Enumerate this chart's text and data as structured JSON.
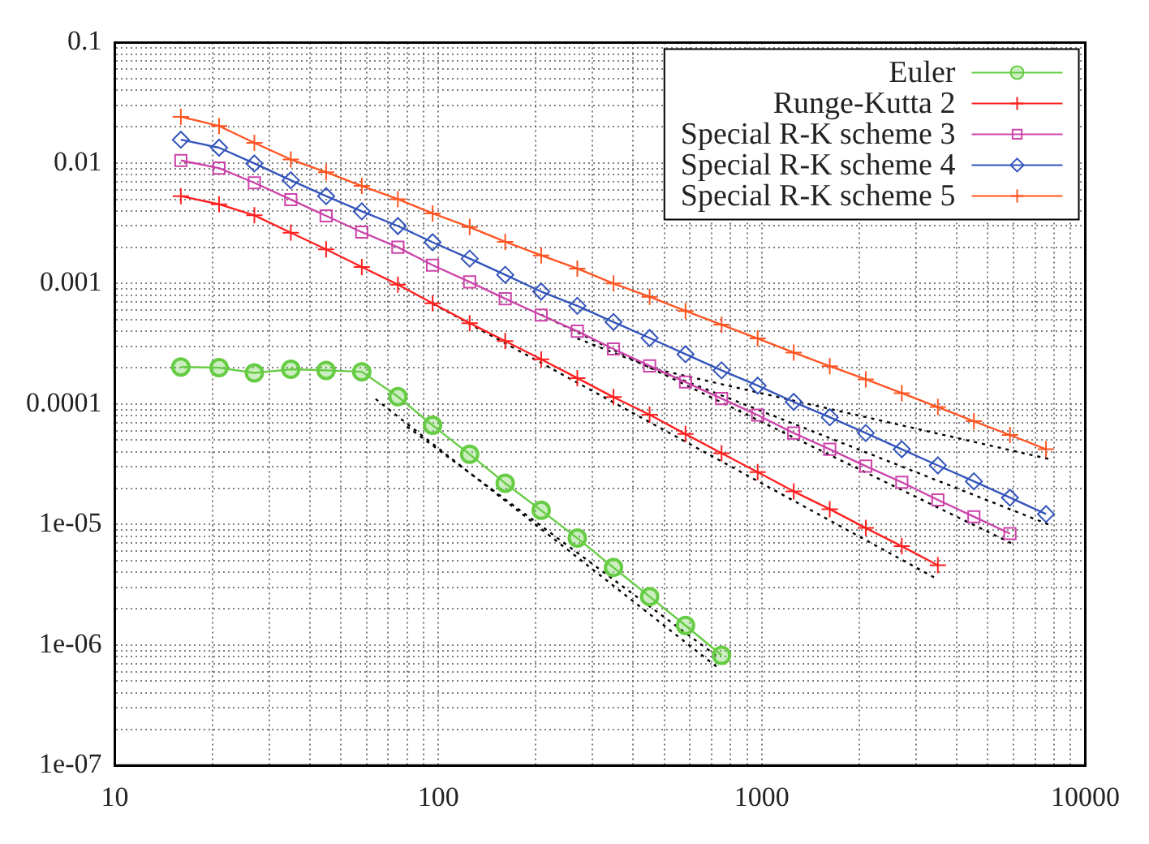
{
  "chart_data": {
    "type": "line",
    "log": "xy",
    "grid": true,
    "legend": "top right",
    "xlim": [
      10,
      10000
    ],
    "ylim": [
      1e-07,
      0.1
    ],
    "xticks": [
      10,
      {
        "value": 20,
        "label": null
      },
      {
        "value": 30,
        "label": null
      },
      {
        "value": 40,
        "label": null
      },
      {
        "value": 50,
        "label": null
      },
      {
        "value": 60,
        "label": null
      },
      {
        "value": 70,
        "label": null
      },
      {
        "value": 80,
        "label": null
      },
      {
        "value": 90,
        "label": null
      },
      100,
      {
        "value": 200,
        "label": null
      },
      {
        "value": 300,
        "label": null
      },
      {
        "value": 400,
        "label": null
      },
      {
        "value": 500,
        "label": null
      },
      {
        "value": 600,
        "label": null
      },
      {
        "value": 700,
        "label": null
      },
      {
        "value": 800,
        "label": null
      },
      {
        "value": 900,
        "label": null
      },
      1000,
      {
        "value": 2000,
        "label": null
      },
      {
        "value": 3000,
        "label": null
      },
      {
        "value": 4000,
        "label": null
      },
      {
        "value": 5000,
        "label": null
      },
      {
        "value": 6000,
        "label": null
      },
      {
        "value": 7000,
        "label": null
      },
      {
        "value": 8000,
        "label": null
      },
      {
        "value": 9000,
        "label": null
      },
      10000
    ],
    "yticks": [
      {
        "value": 1e-07,
        "label": "1e-07"
      },
      {
        "value": 2e-07,
        "label": null
      },
      {
        "value": 3e-07,
        "label": null
      },
      {
        "value": 4e-07,
        "label": null
      },
      {
        "value": 5e-07,
        "label": null
      },
      {
        "value": 6e-07,
        "label": null
      },
      {
        "value": 7e-07,
        "label": null
      },
      {
        "value": 8e-07,
        "label": null
      },
      {
        "value": 9e-07,
        "label": null
      },
      {
        "value": 1e-06,
        "label": "1e-06"
      },
      {
        "value": 2e-06,
        "label": null
      },
      {
        "value": 3e-06,
        "label": null
      },
      {
        "value": 4e-06,
        "label": null
      },
      {
        "value": 5e-06,
        "label": null
      },
      {
        "value": 6e-06,
        "label": null
      },
      {
        "value": 7e-06,
        "label": null
      },
      {
        "value": 8e-06,
        "label": null
      },
      {
        "value": 9e-06,
        "label": null
      },
      {
        "value": 1e-05,
        "label": "1e-05"
      },
      {
        "value": 2e-05,
        "label": null
      },
      {
        "value": 3e-05,
        "label": null
      },
      {
        "value": 4e-05,
        "label": null
      },
      {
        "value": 5e-05,
        "label": null
      },
      {
        "value": 6e-05,
        "label": null
      },
      {
        "value": 7e-05,
        "label": null
      },
      {
        "value": 8e-05,
        "label": null
      },
      {
        "value": 9e-05,
        "label": null
      },
      0.0001,
      {
        "value": 0.0002,
        "label": null
      },
      {
        "value": 0.0003,
        "label": null
      },
      {
        "value": 0.0004,
        "label": null
      },
      {
        "value": 0.0005,
        "label": null
      },
      {
        "value": 0.0006,
        "label": null
      },
      {
        "value": 0.0007,
        "label": null
      },
      {
        "value": 0.0008,
        "label": null
      },
      {
        "value": 0.0009,
        "label": null
      },
      0.001,
      {
        "value": 0.002,
        "label": null
      },
      {
        "value": 0.003,
        "label": null
      },
      {
        "value": 0.004,
        "label": null
      },
      {
        "value": 0.005,
        "label": null
      },
      {
        "value": 0.006,
        "label": null
      },
      {
        "value": 0.007,
        "label": null
      },
      {
        "value": 0.008,
        "label": null
      },
      {
        "value": 0.009,
        "label": null
      },
      0.01,
      {
        "value": 0.02,
        "label": null
      },
      {
        "value": 0.03,
        "label": null
      },
      {
        "value": 0.04,
        "label": null
      },
      {
        "value": 0.05,
        "label": null
      },
      {
        "value": 0.06,
        "label": null
      },
      {
        "value": 0.07,
        "label": null
      },
      {
        "value": 0.08,
        "label": null
      },
      {
        "value": 0.09,
        "label": null
      },
      0.1
    ],
    "series": [
      {
        "name": "Euler",
        "color": "#66cc44",
        "marker": "circle",
        "x": [
          16,
          21,
          27,
          35,
          45,
          58,
          75,
          96,
          125,
          161,
          208,
          269,
          348,
          450,
          581,
          751
        ],
        "values": [
          0.000203,
          0.0002,
          0.000181,
          0.000194,
          0.00019,
          0.000185,
          0.000115,
          6.65e-05,
          3.82e-05,
          2.2e-05,
          1.31e-05,
          7.7e-06,
          4.39e-06,
          2.52e-06,
          1.45e-06,
          8.2e-07
        ]
      },
      {
        "name": "Runge-Kutta 2",
        "color": "#ff2020",
        "marker": "cross",
        "x": [
          16,
          21,
          27,
          35,
          45,
          58,
          75,
          96,
          125,
          161,
          208,
          269,
          348,
          450,
          581,
          751,
          971,
          1255,
          1622,
          2096,
          2709,
          3501
        ],
        "values": [
          0.00531,
          0.00455,
          0.00368,
          0.00264,
          0.00192,
          0.00137,
          0.00098,
          0.000685,
          0.000469,
          0.000333,
          0.000235,
          0.000164,
          0.000114,
          8.15e-05,
          5.63e-05,
          3.9e-05,
          2.72e-05,
          1.88e-05,
          1.34e-05,
          9.35e-06,
          6.6e-06,
          4.59e-06
        ]
      },
      {
        "name": "Special R-K scheme 3",
        "color": "#cc44aa",
        "marker": "square",
        "x": [
          16,
          21,
          27,
          35,
          45,
          58,
          75,
          96,
          125,
          161,
          208,
          269,
          348,
          450,
          581,
          751,
          971,
          1255,
          1622,
          2096,
          2709,
          3501,
          4525,
          5849
        ],
        "values": [
          0.0105,
          0.00908,
          0.00685,
          0.00497,
          0.00364,
          0.00267,
          0.002,
          0.00142,
          0.00103,
          0.000747,
          0.000547,
          0.000402,
          0.000286,
          0.000207,
          0.000152,
          0.000111,
          8.09e-05,
          5.74e-05,
          4.21e-05,
          3.05e-05,
          2.24e-05,
          1.6e-05,
          1.16e-05,
          8.4e-06
        ]
      },
      {
        "name": "Special R-K scheme 4",
        "color": "#3355bb",
        "marker": "diamond",
        "x": [
          16,
          21,
          27,
          35,
          45,
          58,
          75,
          96,
          125,
          161,
          208,
          269,
          348,
          450,
          581,
          751,
          971,
          1255,
          1622,
          2096,
          2709,
          3501,
          4525,
          5849,
          7560
        ],
        "values": [
          0.0156,
          0.0134,
          0.00991,
          0.00719,
          0.00531,
          0.00397,
          0.003,
          0.0022,
          0.00161,
          0.00118,
          0.000857,
          0.000652,
          0.000479,
          0.000353,
          0.000259,
          0.00019,
          0.000142,
          0.000104,
          7.76e-05,
          5.74e-05,
          4.21e-05,
          3.09e-05,
          2.28e-05,
          1.67e-05,
          1.22e-05
        ]
      },
      {
        "name": "Special R-K scheme 5",
        "color": "#ff5522",
        "marker": "cross",
        "x": [
          16,
          21,
          27,
          35,
          45,
          58,
          75,
          96,
          125,
          161,
          208,
          269,
          348,
          450,
          581,
          751,
          971,
          1255,
          1622,
          2096,
          2709,
          3501,
          4525,
          5849,
          7560
        ],
        "values": [
          0.0242,
          0.0203,
          0.0147,
          0.0107,
          0.00839,
          0.00646,
          0.00501,
          0.00382,
          0.00294,
          0.00222,
          0.00171,
          0.00133,
          0.001,
          0.000776,
          0.000592,
          0.000455,
          0.00035,
          0.000267,
          0.000206,
          0.00016,
          0.000123,
          9.44e-05,
          7.19e-05,
          5.53e-05,
          4.21e-05
        ]
      },
      {
        "type": "line",
        "color": "#000000",
        "marker": "none",
        "line_style": "dotted",
        "x": [
          64,
          730
        ],
        "values": [
          0.00011,
          6.5e-07
        ]
      },
      {
        "type": "line",
        "color": "#000000",
        "marker": "none",
        "line_style": "dotted",
        "x": [
          80,
          730
        ],
        "values": [
          6.5e-05,
          8e-07
        ]
      },
      {
        "type": "line",
        "color": "#000000",
        "marker": "none",
        "line_style": "dotted",
        "x": [
          96,
          3500
        ],
        "values": [
          0.00068,
          3.5e-06
        ]
      },
      {
        "type": "line",
        "color": "#000000",
        "marker": "none",
        "line_style": "dotted",
        "x": [
          208,
          5900
        ],
        "values": [
          0.00055,
          7e-06
        ]
      },
      {
        "type": "line",
        "color": "#000000",
        "marker": "none",
        "line_style": "dotted",
        "x": [
          269,
          7700
        ],
        "values": [
          0.00035,
          1e-05
        ]
      },
      {
        "type": "line",
        "color": "#000000",
        "marker": "none",
        "line_style": "dotted",
        "x": [
          450,
          7700
        ],
        "values": [
          0.0002,
          3.5e-05
        ]
      }
    ]
  }
}
